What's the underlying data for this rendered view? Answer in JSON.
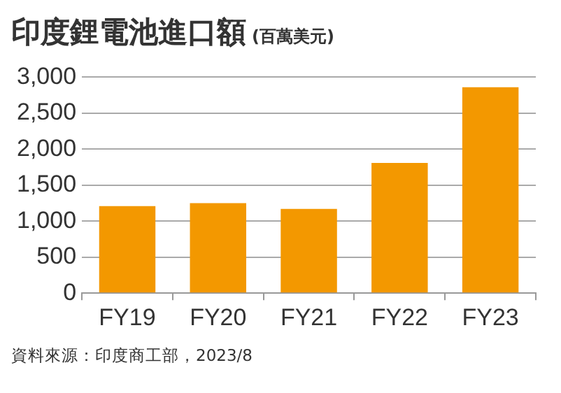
{
  "chart_data": {
    "type": "bar",
    "title": "印度鋰電池進口額",
    "subtitle": "(百萬美元)",
    "categories": [
      "FY19",
      "FY20",
      "FY21",
      "FY22",
      "FY23"
    ],
    "values": [
      1210,
      1250,
      1170,
      1810,
      2860
    ],
    "color": "#f39800",
    "ylim": [
      0,
      3000
    ],
    "yticks": [
      {
        "value": 0,
        "label": "0"
      },
      {
        "value": 500,
        "label": "500"
      },
      {
        "value": 1000,
        "label": "1,000"
      },
      {
        "value": 1500,
        "label": "1,500"
      },
      {
        "value": 2000,
        "label": "2,000"
      },
      {
        "value": 2500,
        "label": "2,500"
      },
      {
        "value": 3000,
        "label": "3,000"
      }
    ],
    "grid": "y",
    "legend": false,
    "annotations": [
      "資料來源：印度商工部，2023/8"
    ]
  }
}
